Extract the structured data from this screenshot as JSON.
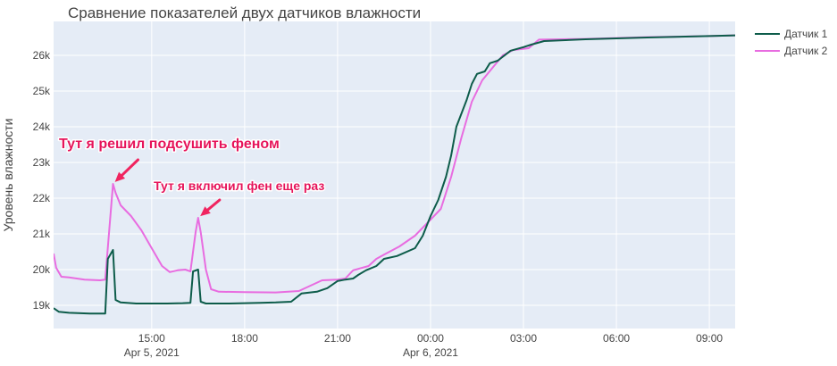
{
  "chart_data": {
    "type": "line",
    "title": "Сравнение показателей двух датчиков влажности",
    "xlabel": "",
    "ylabel": "Уровень влажности",
    "xlim": [
      "2021-04-05 11:50",
      "2021-04-06 09:50"
    ],
    "ylim": [
      18350,
      26950
    ],
    "grid": true,
    "legend_position": "top-right",
    "x_ticks": [
      {
        "t": "2021-04-05 15:00",
        "line1": "15:00",
        "line2": "Apr 5, 2021"
      },
      {
        "t": "2021-04-05 18:00",
        "line1": "18:00",
        "line2": ""
      },
      {
        "t": "2021-04-05 21:00",
        "line1": "21:00",
        "line2": ""
      },
      {
        "t": "2021-04-06 00:00",
        "line1": "00:00",
        "line2": "Apr 6, 2021"
      },
      {
        "t": "2021-04-06 03:00",
        "line1": "03:00",
        "line2": ""
      },
      {
        "t": "2021-04-06 06:00",
        "line1": "06:00",
        "line2": ""
      },
      {
        "t": "2021-04-06 09:00",
        "line1": "09:00",
        "line2": ""
      }
    ],
    "y_ticks": [
      {
        "v": 19000,
        "label": "19k"
      },
      {
        "v": 20000,
        "label": "20k"
      },
      {
        "v": 21000,
        "label": "21k"
      },
      {
        "v": 22000,
        "label": "22k"
      },
      {
        "v": 23000,
        "label": "23k"
      },
      {
        "v": 24000,
        "label": "24k"
      },
      {
        "v": 25000,
        "label": "25k"
      },
      {
        "v": 26000,
        "label": "26k"
      }
    ],
    "series": [
      {
        "name": "Датчик 1",
        "color": "#0d5c4a",
        "points": [
          [
            "2021-04-05 11:50",
            18920
          ],
          [
            "2021-04-05 12:00",
            18820
          ],
          [
            "2021-04-05 12:20",
            18790
          ],
          [
            "2021-04-05 13:00",
            18770
          ],
          [
            "2021-04-05 13:30",
            18770
          ],
          [
            "2021-04-05 13:35",
            20300
          ],
          [
            "2021-04-05 13:45",
            20550
          ],
          [
            "2021-04-05 13:50",
            19150
          ],
          [
            "2021-04-05 14:00",
            19080
          ],
          [
            "2021-04-05 14:30",
            19050
          ],
          [
            "2021-04-05 15:30",
            19050
          ],
          [
            "2021-04-05 16:00",
            19060
          ],
          [
            "2021-04-05 16:15",
            19070
          ],
          [
            "2021-04-05 16:20",
            19950
          ],
          [
            "2021-04-05 16:30",
            20000
          ],
          [
            "2021-04-05 16:35",
            19100
          ],
          [
            "2021-04-05 16:45",
            19050
          ],
          [
            "2021-04-05 17:30",
            19050
          ],
          [
            "2021-04-05 18:30",
            19070
          ],
          [
            "2021-04-05 19:00",
            19080
          ],
          [
            "2021-04-05 19:30",
            19100
          ],
          [
            "2021-04-05 19:50",
            19330
          ],
          [
            "2021-04-05 20:20",
            19380
          ],
          [
            "2021-04-05 20:40",
            19480
          ],
          [
            "2021-04-05 21:00",
            19680
          ],
          [
            "2021-04-05 21:15",
            19720
          ],
          [
            "2021-04-05 21:30",
            19750
          ],
          [
            "2021-04-05 21:40",
            19850
          ],
          [
            "2021-04-05 21:55",
            19980
          ],
          [
            "2021-04-05 22:15",
            20100
          ],
          [
            "2021-04-05 22:30",
            20300
          ],
          [
            "2021-04-05 22:55",
            20380
          ],
          [
            "2021-04-05 23:30",
            20600
          ],
          [
            "2021-04-05 23:45",
            20950
          ],
          [
            "2021-04-06 00:00",
            21500
          ],
          [
            "2021-04-06 00:15",
            21950
          ],
          [
            "2021-04-06 00:30",
            22600
          ],
          [
            "2021-04-06 00:40",
            23200
          ],
          [
            "2021-04-06 00:50",
            24000
          ],
          [
            "2021-04-06 01:10",
            24750
          ],
          [
            "2021-04-06 01:20",
            25200
          ],
          [
            "2021-04-06 01:30",
            25480
          ],
          [
            "2021-04-06 01:45",
            25550
          ],
          [
            "2021-04-06 01:55",
            25780
          ],
          [
            "2021-04-06 02:10",
            25850
          ],
          [
            "2021-04-06 02:35",
            26130
          ],
          [
            "2021-04-06 03:00",
            26230
          ],
          [
            "2021-04-06 03:15",
            26300
          ],
          [
            "2021-04-06 03:40",
            26400
          ],
          [
            "2021-04-06 05:00",
            26450
          ],
          [
            "2021-04-06 07:00",
            26500
          ],
          [
            "2021-04-06 09:00",
            26540
          ],
          [
            "2021-04-06 09:50",
            26560
          ]
        ]
      },
      {
        "name": "Датчик 2",
        "color": "#e86ce0",
        "points": [
          [
            "2021-04-05 11:50",
            20450
          ],
          [
            "2021-04-05 11:55",
            20050
          ],
          [
            "2021-04-05 12:05",
            19800
          ],
          [
            "2021-04-05 12:20",
            19780
          ],
          [
            "2021-04-05 12:50",
            19720
          ],
          [
            "2021-04-05 13:20",
            19700
          ],
          [
            "2021-04-05 13:30",
            19720
          ],
          [
            "2021-04-05 13:45",
            22400
          ],
          [
            "2021-04-05 13:50",
            22150
          ],
          [
            "2021-04-05 14:00",
            21800
          ],
          [
            "2021-04-05 14:20",
            21500
          ],
          [
            "2021-04-05 14:40",
            21100
          ],
          [
            "2021-04-05 15:00",
            20600
          ],
          [
            "2021-04-05 15:20",
            20100
          ],
          [
            "2021-04-05 15:35",
            19930
          ],
          [
            "2021-04-05 15:50",
            19980
          ],
          [
            "2021-04-05 16:05",
            20000
          ],
          [
            "2021-04-05 16:15",
            19950
          ],
          [
            "2021-04-05 16:25",
            21050
          ],
          [
            "2021-04-05 16:30",
            21450
          ],
          [
            "2021-04-05 16:35",
            21050
          ],
          [
            "2021-04-05 16:45",
            20000
          ],
          [
            "2021-04-05 16:55",
            19450
          ],
          [
            "2021-04-05 17:10",
            19380
          ],
          [
            "2021-04-05 18:00",
            19370
          ],
          [
            "2021-04-05 19:00",
            19360
          ],
          [
            "2021-04-05 19:45",
            19400
          ],
          [
            "2021-04-05 20:30",
            19700
          ],
          [
            "2021-04-05 21:00",
            19720
          ],
          [
            "2021-04-05 21:15",
            19750
          ],
          [
            "2021-04-05 21:30",
            19980
          ],
          [
            "2021-04-05 22:00",
            20100
          ],
          [
            "2021-04-05 22:15",
            20300
          ],
          [
            "2021-04-05 22:30",
            20420
          ],
          [
            "2021-04-05 23:00",
            20650
          ],
          [
            "2021-04-05 23:30",
            20950
          ],
          [
            "2021-04-06 00:00",
            21400
          ],
          [
            "2021-04-06 00:20",
            21700
          ],
          [
            "2021-04-06 00:40",
            22600
          ],
          [
            "2021-04-06 01:00",
            23700
          ],
          [
            "2021-04-06 01:20",
            24700
          ],
          [
            "2021-04-06 01:40",
            25300
          ],
          [
            "2021-04-06 02:00",
            25650
          ],
          [
            "2021-04-06 02:20",
            26000
          ],
          [
            "2021-04-06 02:40",
            26150
          ],
          [
            "2021-04-06 03:10",
            26200
          ],
          [
            "2021-04-06 03:30",
            26440
          ],
          [
            "2021-04-06 05:00",
            26460
          ],
          [
            "2021-04-06 07:00",
            26510
          ],
          [
            "2021-04-06 09:00",
            26540
          ],
          [
            "2021-04-06 09:50",
            26560
          ]
        ]
      }
    ],
    "annotations": [
      {
        "text": "Тут я решил подсушить феном",
        "at": [
          "2021-04-05 13:45",
          22400
        ],
        "size": "large"
      },
      {
        "text": "Тут я включил фен еще раз",
        "at": [
          "2021-04-05 16:30",
          21450
        ],
        "size": "small"
      }
    ]
  }
}
